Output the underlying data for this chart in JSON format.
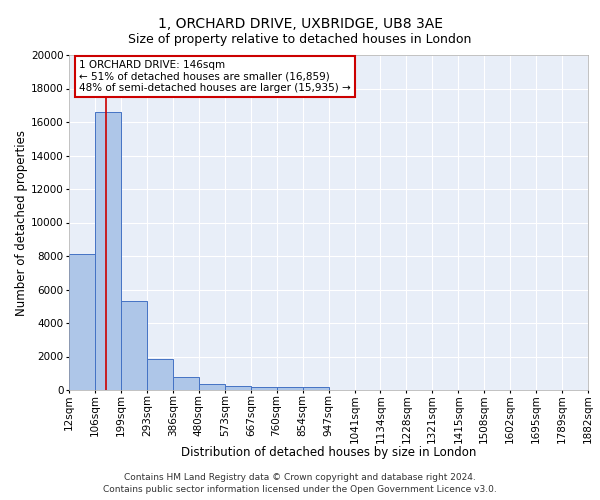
{
  "title1": "1, ORCHARD DRIVE, UXBRIDGE, UB8 3AE",
  "title2": "Size of property relative to detached houses in London",
  "xlabel": "Distribution of detached houses by size in London",
  "ylabel": "Number of detached properties",
  "bins": [
    12,
    106,
    199,
    293,
    386,
    480,
    573,
    667,
    760,
    854,
    947,
    1041,
    1134,
    1228,
    1321,
    1415,
    1508,
    1602,
    1695,
    1789,
    1882
  ],
  "values": [
    8100,
    16600,
    5300,
    1850,
    750,
    330,
    220,
    200,
    200,
    150,
    0,
    0,
    0,
    0,
    0,
    0,
    0,
    0,
    0,
    0
  ],
  "bar_color": "#aec6e8",
  "bar_edge_color": "#4472c4",
  "background_color": "#e8eef8",
  "grid_color": "#ffffff",
  "red_line_x": 146,
  "annotation_title": "1 ORCHARD DRIVE: 146sqm",
  "annotation_line1": "← 51% of detached houses are smaller (16,859)",
  "annotation_line2": "48% of semi-detached houses are larger (15,935) →",
  "annotation_box_color": "#ffffff",
  "annotation_border_color": "#cc0000",
  "footer_line1": "Contains HM Land Registry data © Crown copyright and database right 2024.",
  "footer_line2": "Contains public sector information licensed under the Open Government Licence v3.0.",
  "ylim": [
    0,
    20000
  ],
  "yticks": [
    0,
    2000,
    4000,
    6000,
    8000,
    10000,
    12000,
    14000,
    16000,
    18000,
    20000
  ],
  "title1_fontsize": 10,
  "title2_fontsize": 9,
  "xlabel_fontsize": 8.5,
  "ylabel_fontsize": 8.5,
  "tick_fontsize": 7.5,
  "annotation_fontsize": 7.5,
  "footer_fontsize": 6.5
}
